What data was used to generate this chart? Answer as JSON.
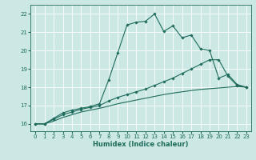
{
  "xlabel": "Humidex (Indice chaleur)",
  "bg_color": "#cce8e4",
  "line_color": "#1e6b5c",
  "grid_color": "#ffffff",
  "xlim": [
    -0.5,
    23.5
  ],
  "ylim": [
    15.6,
    22.5
  ],
  "yticks": [
    16,
    17,
    18,
    19,
    20,
    21,
    22
  ],
  "xticks": [
    0,
    1,
    2,
    3,
    4,
    5,
    6,
    7,
    8,
    9,
    10,
    11,
    12,
    13,
    14,
    15,
    16,
    17,
    18,
    19,
    20,
    21,
    22,
    23
  ],
  "line1_x": [
    0,
    1,
    2,
    3,
    4,
    5,
    6,
    7,
    8,
    9,
    10,
    11,
    12,
    13,
    14,
    15,
    16,
    17,
    18,
    19,
    20,
    21,
    22,
    23
  ],
  "line1_y": [
    16.0,
    16.0,
    16.3,
    16.6,
    16.75,
    16.85,
    16.95,
    17.1,
    18.4,
    19.9,
    21.4,
    21.55,
    21.6,
    22.0,
    21.05,
    21.35,
    20.7,
    20.85,
    20.1,
    20.0,
    18.5,
    18.7,
    18.15,
    18.0
  ],
  "line2_x": [
    0,
    1,
    2,
    3,
    4,
    5,
    6,
    7,
    8,
    9,
    10,
    11,
    12,
    13,
    14,
    15,
    16,
    17,
    18,
    19,
    20,
    21,
    22,
    23
  ],
  "line2_y": [
    16.0,
    16.0,
    16.25,
    16.5,
    16.65,
    16.8,
    16.9,
    17.0,
    17.25,
    17.45,
    17.6,
    17.75,
    17.9,
    18.1,
    18.3,
    18.5,
    18.75,
    19.0,
    19.25,
    19.5,
    19.5,
    18.6,
    18.1,
    18.0
  ],
  "line3_x": [
    0,
    1,
    2,
    3,
    4,
    5,
    6,
    7,
    8,
    9,
    10,
    11,
    12,
    13,
    14,
    15,
    16,
    17,
    18,
    19,
    20,
    21,
    22,
    23
  ],
  "line3_y": [
    16.0,
    16.0,
    16.15,
    16.35,
    16.5,
    16.65,
    16.75,
    16.85,
    16.97,
    17.1,
    17.2,
    17.3,
    17.4,
    17.5,
    17.6,
    17.68,
    17.75,
    17.82,
    17.88,
    17.92,
    17.96,
    18.0,
    18.04,
    18.0
  ]
}
